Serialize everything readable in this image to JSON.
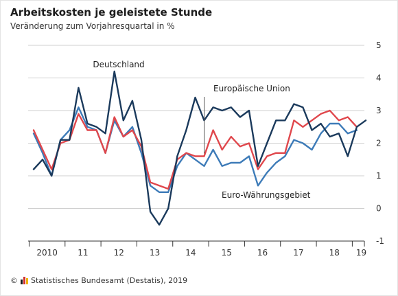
{
  "header": {
    "title": "Arbeitskosten je geleistete Stunde",
    "subtitle": "Veränderung zum Vorjahresquartal in %"
  },
  "footer": {
    "copyright_symbol": "©",
    "source": "Statistisches Bundesamt (Destatis), 2019"
  },
  "colors": {
    "deutschland": "#1b3a5c",
    "eu": "#e0474c",
    "euro": "#3d7bb8",
    "grid": "#cfcfcf",
    "flag": [
      "#1c1c1c",
      "#d0312d",
      "#f0b400"
    ]
  },
  "chart_data": {
    "type": "line",
    "title": "Arbeitskosten je geleistete Stunde",
    "subtitle": "Veränderung zum Vorjahresquartal in %",
    "xlabel": "",
    "ylabel": "",
    "ylim": [
      -1,
      5
    ],
    "yticks": [
      -1,
      0,
      1,
      2,
      3,
      4,
      5
    ],
    "grid": true,
    "legend": "inline labels",
    "year_labels": [
      "2010",
      "11",
      "12",
      "13",
      "14",
      "15",
      "16",
      "17",
      "18",
      "19"
    ],
    "quarters": [
      "2010 Q1",
      "2010 Q2",
      "2010 Q3",
      "2010 Q4",
      "2011 Q1",
      "2011 Q2",
      "2011 Q3",
      "2011 Q4",
      "2012 Q1",
      "2012 Q2",
      "2012 Q3",
      "2012 Q4",
      "2013 Q1",
      "2013 Q2",
      "2013 Q3",
      "2013 Q4",
      "2014 Q1",
      "2014 Q2",
      "2014 Q3",
      "2014 Q4",
      "2015 Q1",
      "2015 Q2",
      "2015 Q3",
      "2015 Q4",
      "2016 Q1",
      "2016 Q2",
      "2016 Q3",
      "2016 Q4",
      "2017 Q1",
      "2017 Q2",
      "2017 Q3",
      "2017 Q4",
      "2018 Q1",
      "2018 Q2",
      "2018 Q3",
      "2018 Q4",
      "2019 Q1",
      "2019 Q2"
    ],
    "series": [
      {
        "name": "Deutschland",
        "key": "deutschland",
        "values": [
          1.2,
          1.5,
          1.0,
          2.1,
          2.1,
          3.7,
          2.6,
          2.5,
          2.3,
          4.2,
          2.7,
          3.3,
          2.1,
          -0.1,
          -0.5,
          0.0,
          1.6,
          2.4,
          3.4,
          2.7,
          3.1,
          3.0,
          3.1,
          2.8,
          3.0,
          1.3,
          2.0,
          2.7,
          2.7,
          3.2,
          3.1,
          2.4,
          2.6,
          2.2,
          2.3,
          1.6,
          2.5,
          2.7
        ]
      },
      {
        "name": "Europäische Union",
        "key": "eu",
        "values": [
          2.4,
          1.8,
          1.2,
          2.0,
          2.1,
          2.9,
          2.4,
          2.4,
          1.7,
          2.8,
          2.2,
          2.4,
          1.9,
          0.8,
          0.7,
          0.6,
          1.5,
          1.7,
          1.6,
          1.6,
          2.4,
          1.8,
          2.2,
          1.9,
          2.0,
          1.2,
          1.6,
          1.7,
          1.7,
          2.7,
          2.5,
          2.7,
          2.9,
          3.0,
          2.7,
          2.8,
          2.5,
          null
        ]
      },
      {
        "name": "Euro-Währungsgebiet",
        "key": "euro",
        "values": [
          2.3,
          1.7,
          1.0,
          2.1,
          2.4,
          3.1,
          2.5,
          2.4,
          1.7,
          2.7,
          2.2,
          2.5,
          1.7,
          0.7,
          0.5,
          0.5,
          1.3,
          1.7,
          1.5,
          1.3,
          1.8,
          1.3,
          1.4,
          1.4,
          1.6,
          0.7,
          1.1,
          1.4,
          1.6,
          2.1,
          2.0,
          1.8,
          2.3,
          2.6,
          2.6,
          2.3,
          2.4,
          null
        ]
      }
    ]
  }
}
